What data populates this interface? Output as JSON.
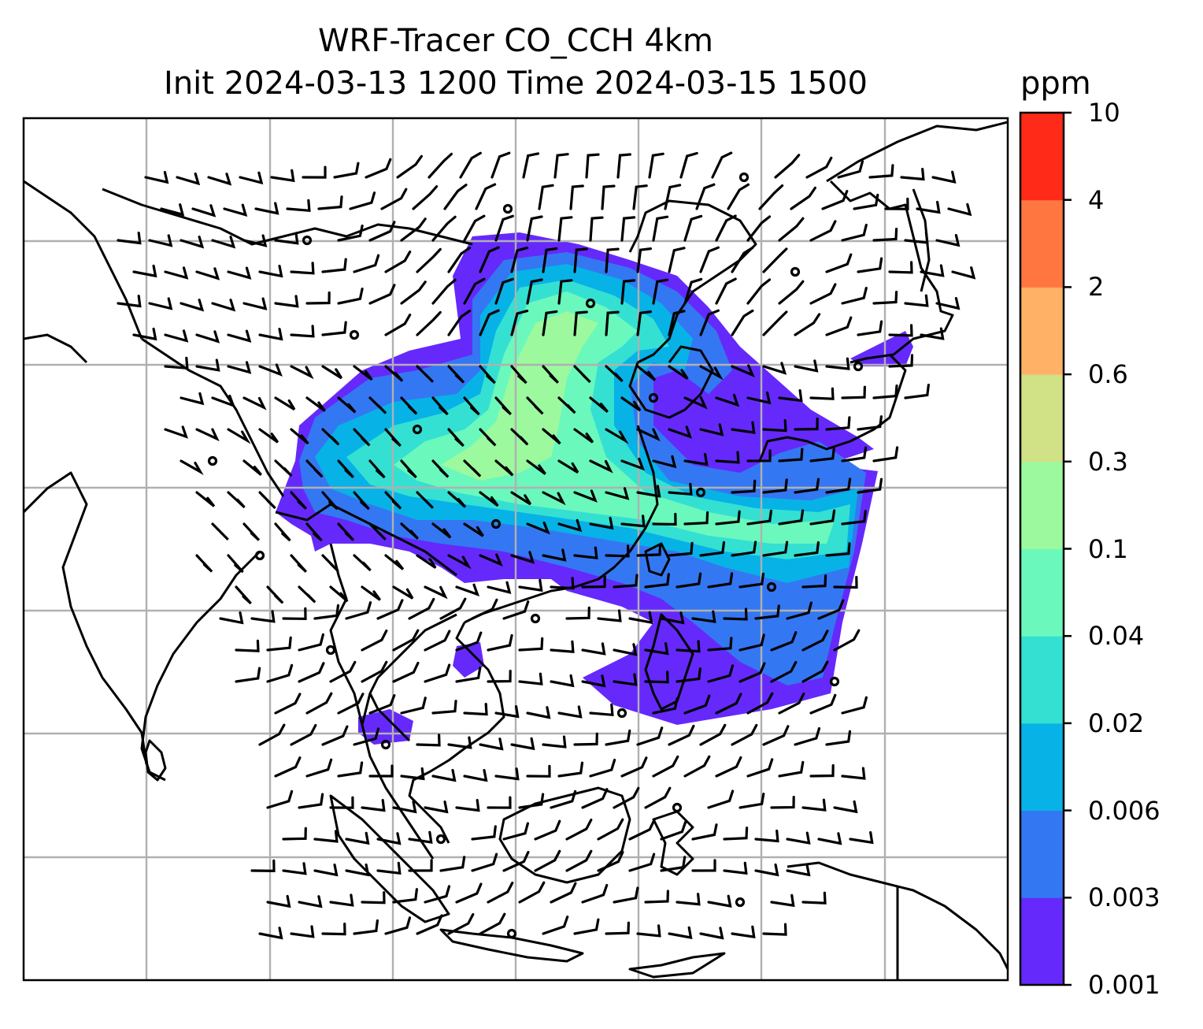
{
  "title": {
    "line1": "WRF-Tracer CO_CCH 4km",
    "line2": "Init 2024-03-13 1200 Time 2024-03-15 1500"
  },
  "colorbar": {
    "unit": "ppm",
    "levels": [
      "0.001",
      "0.003",
      "0.006",
      "0.02",
      "0.04",
      "0.1",
      "0.3",
      "0.6",
      "2",
      "4",
      "10"
    ],
    "colors": [
      "#6529fb",
      "#3477f2",
      "#07b2e7",
      "#34e0d2",
      "#6af8bd",
      "#9cf99e",
      "#d0e186",
      "#ffb266",
      "#ff7640",
      "#ff2a18"
    ]
  },
  "map": {
    "gridlines": true,
    "coastlines": true,
    "wind_barbs": true,
    "fill_colors": {
      "background": "#ffffff",
      "grid": "#b0b0b0",
      "coast": "#000000"
    }
  }
}
